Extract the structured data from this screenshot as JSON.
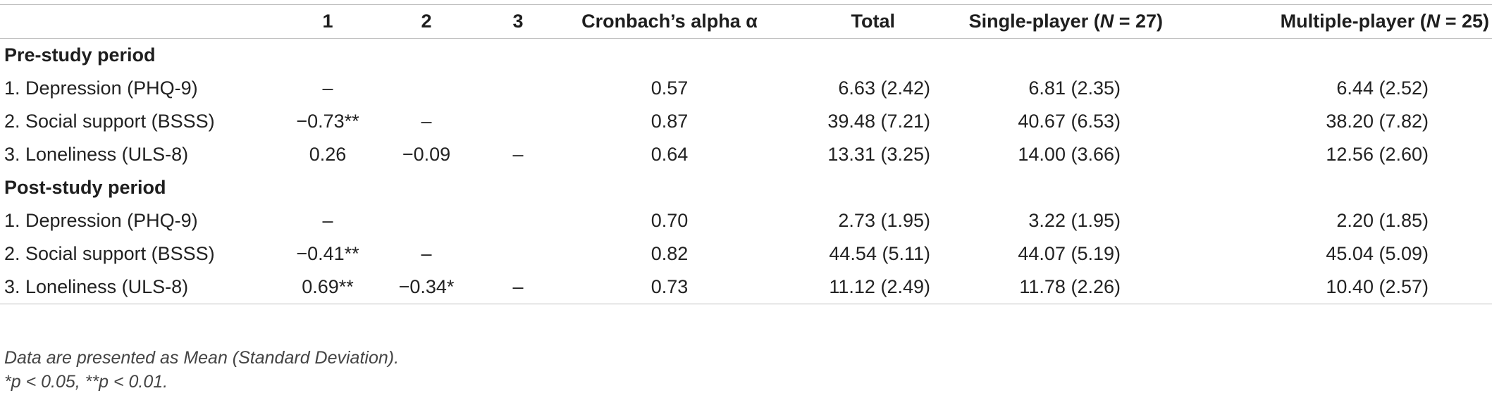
{
  "table": {
    "headers": {
      "label": "",
      "col1": "1",
      "col2": "2",
      "col3": "3",
      "alpha": "Cronbach’s alpha α",
      "total": "Total",
      "single_prefix": "Single-player (",
      "single_n": "N",
      "single_suffix": " = 27)",
      "multi_prefix": "Multiple-player (",
      "multi_n": "N",
      "multi_suffix": " = 25)"
    },
    "sections": [
      {
        "title": "Pre-study period",
        "rows": [
          {
            "label": "1. Depression (PHQ-9)",
            "c1": "–",
            "c2": "",
            "c3": "",
            "alpha": "0.57",
            "total": "6.63 (2.42)",
            "single": "6.81 (2.35)",
            "multi": "6.44 (2.52)"
          },
          {
            "label": "2. Social support (BSSS)",
            "c1": "−0.73**",
            "c2": "–",
            "c3": "",
            "alpha": "0.87",
            "total": "39.48 (7.21)",
            "single": "40.67 (6.53)",
            "multi": "38.20 (7.82)"
          },
          {
            "label": "3. Loneliness (ULS-8)",
            "c1": "0.26",
            "c2": "−0.09",
            "c3": "–",
            "alpha": "0.64",
            "total": "13.31 (3.25)",
            "single": "14.00 (3.66)",
            "multi": "12.56 (2.60)"
          }
        ]
      },
      {
        "title": "Post-study period",
        "rows": [
          {
            "label": "1. Depression (PHQ-9)",
            "c1": "–",
            "c2": "",
            "c3": "",
            "alpha": "0.70",
            "total": "2.73 (1.95)",
            "single": "3.22 (1.95)",
            "multi": "2.20 (1.85)"
          },
          {
            "label": "2. Social support (BSSS)",
            "c1": "−0.41**",
            "c2": "–",
            "c3": "",
            "alpha": "0.82",
            "total": "44.54 (5.11)",
            "single": "44.07 (5.19)",
            "multi": "45.04 (5.09)"
          },
          {
            "label": "3. Loneliness (ULS-8)",
            "c1": "0.69**",
            "c2": "−0.34*",
            "c3": "–",
            "alpha": "0.73",
            "total": "11.12 (2.49)",
            "single": "11.78 (2.26)",
            "multi": "10.40 (2.57)"
          }
        ]
      }
    ]
  },
  "notes": {
    "line1": "Data are presented as Mean (Standard Deviation).",
    "line2": "*p < 0.05, **p < 0.01."
  }
}
